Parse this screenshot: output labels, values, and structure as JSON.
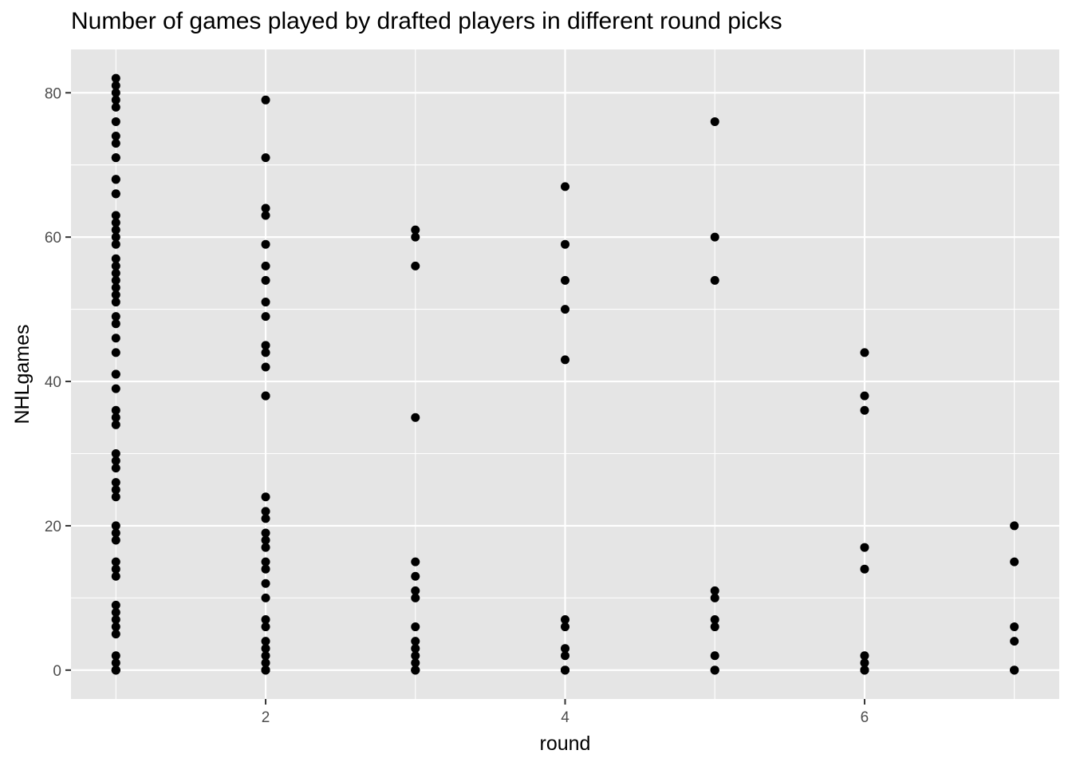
{
  "chart_data": {
    "type": "scatter",
    "title": "Number of games played by drafted players in different round picks",
    "xlabel": "round",
    "ylabel": "NHLgames",
    "xlim": [
      0.7,
      7.3
    ],
    "ylim": [
      -4,
      86
    ],
    "xticks": [
      2,
      4,
      6
    ],
    "yticks": [
      0,
      20,
      40,
      60,
      80
    ],
    "grid": true,
    "legend": "none",
    "colors": {
      "panel": "#e5e5e5",
      "grid": "#ffffff",
      "point": "#000000"
    },
    "points": [
      {
        "round": 1,
        "games": [
          82,
          81,
          80,
          79,
          78,
          76,
          74,
          73,
          71,
          71,
          68,
          68,
          66,
          66,
          63,
          62,
          61,
          60,
          59,
          57,
          56,
          55,
          54,
          53,
          52,
          51,
          49,
          48,
          46,
          44,
          41,
          41,
          39,
          36,
          35,
          34,
          30,
          29,
          28,
          26,
          25,
          24,
          20,
          19,
          18,
          15,
          14,
          13,
          9,
          8,
          7,
          6,
          5,
          2,
          1,
          0,
          0,
          0,
          0
        ]
      },
      {
        "round": 2,
        "games": [
          79,
          71,
          64,
          63,
          59,
          56,
          54,
          51,
          49,
          45,
          44,
          42,
          38,
          38,
          24,
          22,
          21,
          19,
          18,
          17,
          15,
          14,
          12,
          10,
          7,
          6,
          4,
          3,
          2,
          1,
          0,
          0,
          0
        ]
      },
      {
        "round": 3,
        "games": [
          61,
          60,
          56,
          35,
          15,
          13,
          11,
          10,
          6,
          4,
          3,
          2,
          1,
          0,
          0,
          0
        ]
      },
      {
        "round": 4,
        "games": [
          67,
          59,
          54,
          50,
          43,
          7,
          6,
          3,
          2,
          0,
          0,
          0
        ]
      },
      {
        "round": 5,
        "games": [
          76,
          60,
          54,
          11,
          10,
          7,
          6,
          2,
          0,
          0,
          0
        ]
      },
      {
        "round": 6,
        "games": [
          44,
          38,
          36,
          17,
          14,
          2,
          1,
          0,
          0,
          0
        ]
      },
      {
        "round": 7,
        "games": [
          20,
          15,
          6,
          4,
          0,
          0,
          0
        ]
      }
    ]
  }
}
